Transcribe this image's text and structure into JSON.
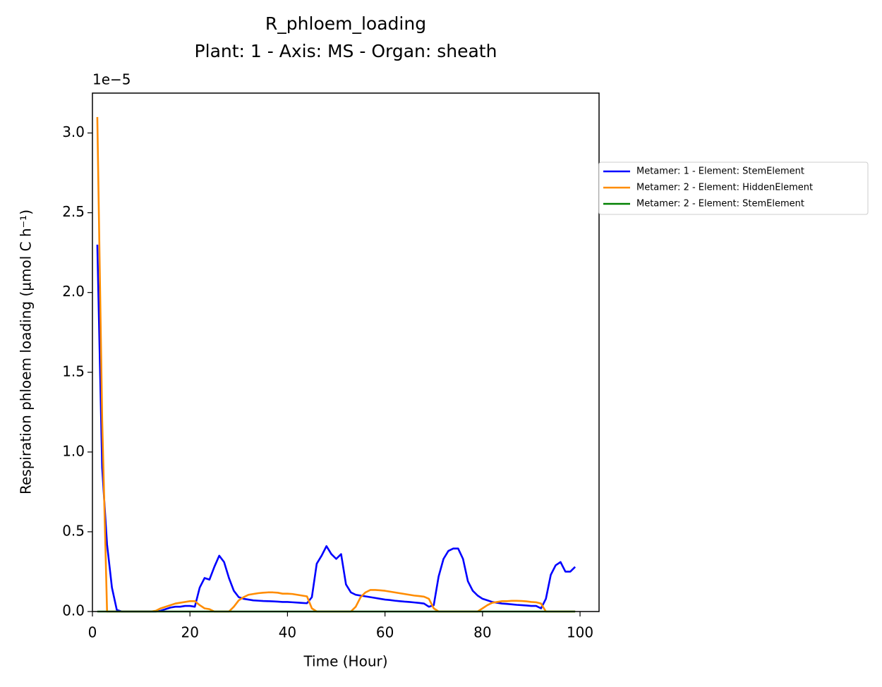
{
  "chart_data": {
    "type": "line",
    "title": "R_phloem_loading",
    "subtitle": "Plant: 1 - Axis: MS - Organ: sheath",
    "x_label": "Time (Hour)",
    "y_label": "Respiration phloem loading (µmol C h⁻¹)",
    "y_offset_label": "1e−5",
    "x": [
      1,
      2,
      3,
      4,
      5,
      6,
      7,
      8,
      9,
      10,
      11,
      12,
      13,
      14,
      15,
      16,
      17,
      18,
      19,
      20,
      21,
      22,
      23,
      24,
      25,
      26,
      27,
      28,
      29,
      30,
      31,
      32,
      33,
      34,
      35,
      36,
      37,
      38,
      39,
      40,
      41,
      42,
      43,
      44,
      45,
      46,
      47,
      48,
      49,
      50,
      51,
      52,
      53,
      54,
      55,
      56,
      57,
      58,
      59,
      60,
      61,
      62,
      63,
      64,
      65,
      66,
      67,
      68,
      69,
      70,
      71,
      72,
      73,
      74,
      75,
      76,
      77,
      78,
      79,
      80,
      81,
      82,
      83,
      84,
      85,
      86,
      87,
      88,
      89,
      90,
      91,
      92,
      93,
      94,
      95,
      96,
      97,
      98,
      99
    ],
    "series": [
      {
        "name": "Metamer: 1 - Element: StemElement",
        "color": "#0000ff",
        "values": [
          2.3,
          0.9,
          0.42,
          0.15,
          0.01,
          0,
          0,
          0,
          0,
          0,
          0,
          0,
          0,
          0.005,
          0.015,
          0.025,
          0.03,
          0.03,
          0.035,
          0.035,
          0.03,
          0.15,
          0.21,
          0.2,
          0.28,
          0.35,
          0.31,
          0.21,
          0.13,
          0.09,
          0.08,
          0.075,
          0.07,
          0.068,
          0.066,
          0.065,
          0.064,
          0.062,
          0.06,
          0.06,
          0.058,
          0.056,
          0.054,
          0.052,
          0.09,
          0.3,
          0.35,
          0.41,
          0.36,
          0.33,
          0.36,
          0.17,
          0.12,
          0.105,
          0.1,
          0.095,
          0.09,
          0.085,
          0.08,
          0.075,
          0.072,
          0.068,
          0.065,
          0.062,
          0.06,
          0.057,
          0.054,
          0.05,
          0.03,
          0.04,
          0.22,
          0.33,
          0.38,
          0.395,
          0.395,
          0.33,
          0.19,
          0.13,
          0.1,
          0.08,
          0.07,
          0.06,
          0.055,
          0.05,
          0.048,
          0.045,
          0.042,
          0.04,
          0.038,
          0.035,
          0.035,
          0.02,
          0.08,
          0.23,
          0.29,
          0.31,
          0.25,
          0.25,
          0.28
        ]
      },
      {
        "name": "Metamer: 2 - Element: HiddenElement",
        "color": "#ff8c00",
        "values": [
          3.1,
          1.2,
          0,
          0,
          0,
          0,
          0,
          0,
          0,
          0,
          0,
          0,
          0.005,
          0.02,
          0.03,
          0.04,
          0.05,
          0.055,
          0.06,
          0.065,
          0.065,
          0.04,
          0.02,
          0.015,
          0,
          0,
          0,
          0,
          0.03,
          0.07,
          0.09,
          0.105,
          0.11,
          0.115,
          0.118,
          0.12,
          0.12,
          0.118,
          0.112,
          0.112,
          0.11,
          0.105,
          0.1,
          0.095,
          0.02,
          0,
          0,
          0,
          0,
          0,
          0,
          0,
          0,
          0.03,
          0.09,
          0.12,
          0.135,
          0.135,
          0.133,
          0.13,
          0.125,
          0.12,
          0.115,
          0.11,
          0.105,
          0.1,
          0.097,
          0.093,
          0.08,
          0.02,
          0,
          0,
          0,
          0,
          0,
          0,
          0,
          0,
          0,
          0.02,
          0.04,
          0.055,
          0.06,
          0.065,
          0.065,
          0.067,
          0.067,
          0.066,
          0.064,
          0.06,
          0.058,
          0.05,
          0,
          0,
          0,
          0,
          0,
          0,
          0
        ]
      },
      {
        "name": "Metamer: 2 - Element: StemElement",
        "color": "#008000",
        "values": [
          0,
          0,
          0,
          0,
          0,
          0,
          0,
          0,
          0,
          0,
          0,
          0,
          0,
          0,
          0,
          0,
          0,
          0,
          0,
          0,
          0,
          0,
          0,
          0,
          0,
          0,
          0,
          0,
          0,
          0,
          0,
          0,
          0,
          0,
          0,
          0,
          0,
          0,
          0,
          0,
          0,
          0,
          0,
          0,
          0,
          0,
          0,
          0,
          0,
          0,
          0,
          0,
          0,
          0,
          0,
          0,
          0,
          0,
          0,
          0,
          0,
          0,
          0,
          0,
          0,
          0,
          0,
          0,
          0,
          0,
          0,
          0,
          0,
          0,
          0,
          0,
          0,
          0,
          0,
          0,
          0,
          0,
          0,
          0,
          0,
          0,
          0,
          0,
          0,
          0,
          0,
          0,
          0,
          0,
          0,
          0,
          0,
          0,
          0
        ]
      }
    ],
    "xlim": [
      0,
      103.9
    ],
    "ylim": [
      0,
      3.25
    ],
    "xticks": [
      0,
      20,
      40,
      60,
      80,
      100
    ],
    "yticks": [
      {
        "value": 0,
        "label": "0.0"
      },
      0.5,
      {
        "value": 1,
        "label": "1.0"
      },
      1.5,
      {
        "value": 2,
        "label": "2.0"
      },
      2.5,
      {
        "value": 3,
        "label": "3.0"
      }
    ],
    "legend": "outside-right"
  }
}
